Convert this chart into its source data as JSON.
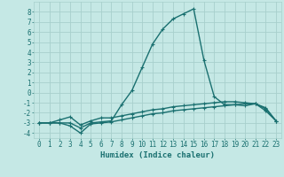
{
  "xlabel": "Humidex (Indice chaleur)",
  "background_color": "#c5e8e5",
  "grid_color": "#a8d0cc",
  "line_color": "#1a7070",
  "xlim": [
    -0.5,
    23.5
  ],
  "ylim": [
    -4.5,
    9.0
  ],
  "xticks": [
    0,
    1,
    2,
    3,
    4,
    5,
    6,
    7,
    8,
    9,
    10,
    11,
    12,
    13,
    14,
    15,
    16,
    17,
    18,
    19,
    20,
    21,
    22,
    23
  ],
  "yticks": [
    -4,
    -3,
    -2,
    -1,
    0,
    1,
    2,
    3,
    4,
    5,
    6,
    7,
    8
  ],
  "line1_x": [
    0,
    1,
    2,
    3,
    4,
    5,
    6,
    7,
    8,
    9,
    10,
    11,
    12,
    13,
    14,
    15,
    16,
    17,
    18,
    19,
    20,
    21,
    22,
    23
  ],
  "line1_y": [
    -3,
    -3,
    -3,
    -3.3,
    -4.0,
    -3.1,
    -3.0,
    -2.9,
    -2.7,
    -2.5,
    -2.3,
    -2.1,
    -2.0,
    -1.8,
    -1.7,
    -1.6,
    -1.5,
    -1.4,
    -1.3,
    -1.2,
    -1.1,
    -1.1,
    -1.6,
    -2.8
  ],
  "line2_x": [
    0,
    1,
    2,
    3,
    4,
    5,
    6,
    7,
    8,
    9,
    10,
    11,
    12,
    13,
    14,
    15,
    16,
    17,
    18,
    19,
    20,
    21,
    22,
    23
  ],
  "line2_y": [
    -3,
    -3,
    -2.7,
    -2.4,
    -3.2,
    -2.8,
    -2.5,
    -2.5,
    -2.3,
    -2.1,
    -1.9,
    -1.7,
    -1.6,
    -1.4,
    -1.3,
    -1.2,
    -1.1,
    -1.0,
    -0.9,
    -0.9,
    -1.0,
    -1.1,
    -1.8,
    -2.8
  ],
  "line3_x": [
    0,
    1,
    2,
    3,
    4,
    5,
    6,
    7,
    8,
    9,
    10,
    11,
    12,
    13,
    14,
    15,
    16,
    17,
    18,
    19,
    20,
    21,
    22,
    23
  ],
  "line3_y": [
    -3,
    -3,
    -3,
    -3,
    -3.5,
    -3,
    -2.9,
    -2.8,
    -1.2,
    0.2,
    2.5,
    4.8,
    6.3,
    7.3,
    7.8,
    8.3,
    3.2,
    -0.4,
    -1.2,
    -1.2,
    -1.3,
    -1.1,
    -1.5,
    -2.8
  ],
  "xlabel_fontsize": 6.5,
  "tick_fontsize": 5.5,
  "linewidth": 1.0,
  "markersize": 2.5
}
